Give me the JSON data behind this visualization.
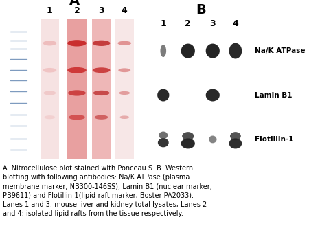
{
  "title_A": "A",
  "title_B": "B",
  "lane_labels": [
    "1",
    "2",
    "3",
    "4"
  ],
  "band_labels": [
    "Na/K ATPase",
    "Lamin B1",
    "Flotillin-1"
  ],
  "caption": "A. Nitrocellulose blot stained with Ponceau S. B. Western\nblotting with following antibodies: Na/K ATPase (plasma\nmembrane marker, NB300-146SS), Lamin B1 (nuclear marker,\nPB9611) and Flotillin-1(lipid-raft marker, Boster PA2033).\nLanes 1 and 3; mouse liver and kidney total lysates, Lanes 2\nand 4: isolated lipid rafts from the tissue respectively.",
  "bg_color_western": "#4bbfcf",
  "ponceau_bg": "#f7e8e8",
  "ladder_color": "#7090b8",
  "fig_bg": "#ffffff",
  "ponceau_border": "#cccccc",
  "lane_streak_colors": [
    "#f0d0d0",
    "#e8a0a0",
    "#edb0b0",
    "#f0d0d0"
  ],
  "lane_streak_alphas": [
    0.6,
    1.0,
    0.9,
    0.5
  ]
}
